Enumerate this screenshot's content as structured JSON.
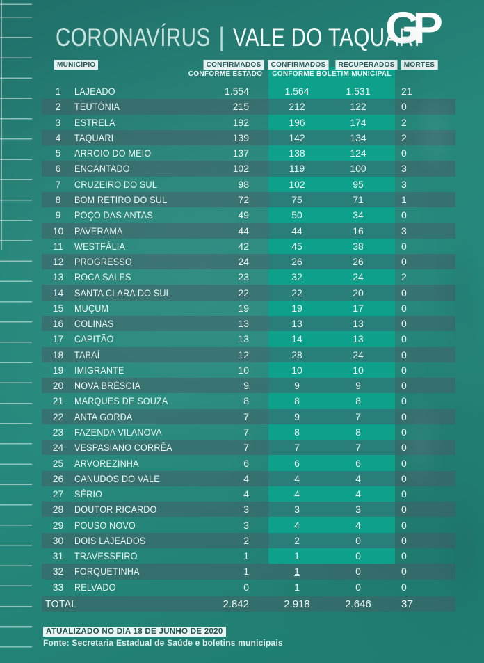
{
  "header": {
    "title_left": "CORONAVÍRUS",
    "title_separator": "|",
    "title_right": "VALE DO TAQUARI",
    "logo_text": "GP"
  },
  "table": {
    "headers": {
      "municipio": "MUNICÍPIO",
      "confirmados_estado": "CONFIRMADOS",
      "conforme_estado": "CONFORME ESTADO",
      "confirmados_municipal": "CONFIRMADOS",
      "recuperados": "RECUPERADOS",
      "conforme_boletim": "CONFORME BOLETIM MUNICIPAL",
      "mortes": "MORTES"
    }
  },
  "chart_data": {
    "type": "table",
    "title": "CORONAVÍRUS | VALE DO TAQUARI",
    "columns": [
      "MUNICÍPIO",
      "CONFIRMADOS CONFORME ESTADO",
      "CONFIRMADOS CONFORME BOLETIM MUNICIPAL",
      "RECUPERADOS CONFORME BOLETIM MUNICIPAL",
      "MORTES"
    ],
    "rows": [
      {
        "rank": "1",
        "name": "LAJEADO",
        "estado": "1.554",
        "municipal": "1.564",
        "recuperados": "1.531",
        "mortes": "21"
      },
      {
        "rank": "2",
        "name": "TEUTÔNIA",
        "estado": "215",
        "municipal": "212",
        "recuperados": "122",
        "mortes": "0"
      },
      {
        "rank": "3",
        "name": "ESTRELA",
        "estado": "192",
        "municipal": "196",
        "recuperados": "174",
        "mortes": "2"
      },
      {
        "rank": "4",
        "name": "TAQUARI",
        "estado": "139",
        "municipal": "142",
        "recuperados": "134",
        "mortes": "2"
      },
      {
        "rank": "5",
        "name": "ARROIO DO MEIO",
        "estado": "137",
        "municipal": "138",
        "recuperados": "124",
        "mortes": "0"
      },
      {
        "rank": "6",
        "name": "ENCANTADO",
        "estado": "102",
        "municipal": "119",
        "recuperados": "100",
        "mortes": "3"
      },
      {
        "rank": "7",
        "name": "CRUZEIRO DO SUL",
        "estado": "98",
        "municipal": "102",
        "recuperados": "95",
        "mortes": "3"
      },
      {
        "rank": "8",
        "name": "BOM RETIRO DO SUL",
        "estado": "72",
        "municipal": "75",
        "recuperados": "71",
        "mortes": "1"
      },
      {
        "rank": "9",
        "name": "POÇO DAS ANTAS",
        "estado": "49",
        "municipal": "50",
        "recuperados": "34",
        "mortes": "0"
      },
      {
        "rank": "10",
        "name": "PAVERAMA",
        "estado": "44",
        "municipal": "44",
        "recuperados": "16",
        "mortes": "3"
      },
      {
        "rank": "11",
        "name": "WESTFÁLIA",
        "estado": "42",
        "municipal": "45",
        "recuperados": "38",
        "mortes": "0"
      },
      {
        "rank": "12",
        "name": "PROGRESSO",
        "estado": "24",
        "municipal": "26",
        "recuperados": "26",
        "mortes": "0"
      },
      {
        "rank": "13",
        "name": "ROCA SALES",
        "estado": "23",
        "municipal": "32",
        "recuperados": "24",
        "mortes": "2"
      },
      {
        "rank": "14",
        "name": "SANTA CLARA DO SUL",
        "estado": "22",
        "municipal": "22",
        "recuperados": "20",
        "mortes": "0"
      },
      {
        "rank": "15",
        "name": "MUÇUM",
        "estado": "19",
        "municipal": "19",
        "recuperados": "17",
        "mortes": "0"
      },
      {
        "rank": "16",
        "name": "COLINAS",
        "estado": "13",
        "municipal": "13",
        "recuperados": "13",
        "mortes": "0"
      },
      {
        "rank": "17",
        "name": "CAPITÃO",
        "estado": "13",
        "municipal": "14",
        "recuperados": "13",
        "mortes": "0"
      },
      {
        "rank": "18",
        "name": "TABAÍ",
        "estado": "12",
        "municipal": "28",
        "recuperados": "24",
        "mortes": "0"
      },
      {
        "rank": "19",
        "name": "IMIGRANTE",
        "estado": "10",
        "municipal": "10",
        "recuperados": "10",
        "mortes": "0"
      },
      {
        "rank": "20",
        "name": "NOVA BRÉSCIA",
        "estado": "9",
        "municipal": "9",
        "recuperados": "9",
        "mortes": "0"
      },
      {
        "rank": "21",
        "name": "MARQUES DE SOUZA",
        "estado": "8",
        "municipal": "8",
        "recuperados": "8",
        "mortes": "0"
      },
      {
        "rank": "22",
        "name": "ANTA GORDA",
        "estado": "7",
        "municipal": "9",
        "recuperados": "7",
        "mortes": "0"
      },
      {
        "rank": "23",
        "name": "FAZENDA VILANOVA",
        "estado": "7",
        "municipal": "8",
        "recuperados": "8",
        "mortes": "0"
      },
      {
        "rank": "24",
        "name": "VESPASIANO CORRÊA",
        "estado": "7",
        "municipal": "7",
        "recuperados": "7",
        "mortes": "0"
      },
      {
        "rank": "25",
        "name": "ARVOREZINHA",
        "estado": "6",
        "municipal": "6",
        "recuperados": "6",
        "mortes": "0"
      },
      {
        "rank": "26",
        "name": "CANUDOS DO VALE",
        "estado": "4",
        "municipal": "4",
        "recuperados": "4",
        "mortes": "0"
      },
      {
        "rank": "27",
        "name": "SÉRIO",
        "estado": "4",
        "municipal": "4",
        "recuperados": "4",
        "mortes": "0"
      },
      {
        "rank": "28",
        "name": "DOUTOR RICARDO",
        "estado": "3",
        "municipal": "3",
        "recuperados": "3",
        "mortes": "0"
      },
      {
        "rank": "29",
        "name": "POUSO NOVO",
        "estado": "3",
        "municipal": "4",
        "recuperados": "4",
        "mortes": "0"
      },
      {
        "rank": "30",
        "name": "DOIS LAJEADOS",
        "estado": "2",
        "municipal": "2",
        "recuperados": "0",
        "mortes": "0"
      },
      {
        "rank": "31",
        "name": "TRAVESSEIRO",
        "estado": "1",
        "municipal": "1",
        "recuperados": "0",
        "mortes": "0"
      },
      {
        "rank": "32",
        "name": "FORQUETINHA",
        "estado": "1",
        "municipal": "1",
        "recuperados": "0",
        "mortes": "0",
        "municipal_underline": true
      },
      {
        "rank": "33",
        "name": "RELVADO",
        "estado": "0",
        "municipal": "1",
        "recuperados": "0",
        "mortes": "0"
      }
    ],
    "total": {
      "label": "TOTAL",
      "estado": "2.842",
      "municipal": "2.918",
      "recuperados": "2.646",
      "mortes": "37"
    }
  },
  "footer": {
    "updated": "ATUALIZADO NO DIA 18 DE JUNHO DE 2020",
    "source": "Fonte: Secretaria Estadual de Saúde e boletins municipais"
  },
  "colors": {
    "background_teal": "#24867a",
    "band_green": "#0da18c",
    "stripe_gray": "rgba(70,92,102,0.5)",
    "chip_background": "#f5faf9",
    "chip_text": "#235a59",
    "text_light": "#eef6f4"
  }
}
